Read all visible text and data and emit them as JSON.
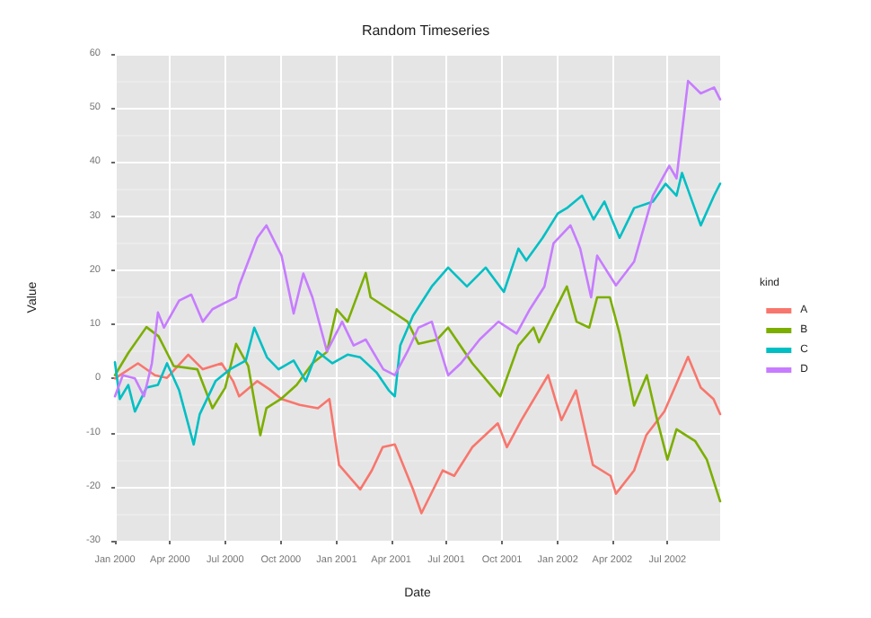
{
  "chart_data": {
    "type": "line",
    "title": "Random Timeseries",
    "xlabel": "Date",
    "ylabel": "Value",
    "legend_title": "kind",
    "legend": "right",
    "grid": true,
    "xlim": [
      "2000-01-01",
      "2002-09-26"
    ],
    "xticks": [
      {
        "value": "2000-01-01",
        "label": "Jan 2000"
      },
      {
        "value": "2000-04-01",
        "label": "Apr 2000"
      },
      {
        "value": "2000-07-01",
        "label": "Jul 2000"
      },
      {
        "value": "2000-10-01",
        "label": "Oct 2000"
      },
      {
        "value": "2001-01-01",
        "label": "Jan 2001"
      },
      {
        "value": "2001-04-01",
        "label": "Apr 2001"
      },
      {
        "value": "2001-07-01",
        "label": "Jul 2001"
      },
      {
        "value": "2001-10-01",
        "label": "Oct 2001"
      },
      {
        "value": "2002-01-01",
        "label": "Jan 2002"
      },
      {
        "value": "2002-04-01",
        "label": "Apr 2002"
      },
      {
        "value": "2002-07-01",
        "label": "Jul 2002"
      }
    ],
    "ylim": [
      -30,
      60
    ],
    "yticks": [
      -30,
      -20,
      -10,
      0,
      10,
      20,
      30,
      40,
      50,
      60
    ],
    "series": [
      {
        "name": "A",
        "color": "#f8766d",
        "x": [
          "2000-01-01",
          "2000-02-08",
          "2000-03-07",
          "2000-03-27",
          "2000-05-01",
          "2000-05-25",
          "2000-06-25",
          "2000-07-14",
          "2000-07-24",
          "2000-08-23",
          "2000-09-12",
          "2000-10-02",
          "2000-11-01",
          "2000-12-01",
          "2000-12-20",
          "2001-01-05",
          "2001-02-09",
          "2001-02-28",
          "2001-03-18",
          "2001-04-07",
          "2001-05-07",
          "2001-05-21",
          "2001-06-25",
          "2001-07-14",
          "2001-08-13",
          "2001-09-24",
          "2001-10-09",
          "2001-11-02",
          "2001-12-16",
          "2002-01-07",
          "2002-01-31",
          "2002-02-28",
          "2002-03-29",
          "2002-04-07",
          "2002-05-07",
          "2002-05-27",
          "2002-06-26",
          "2002-08-04",
          "2002-08-25",
          "2002-09-15",
          "2002-09-26"
        ],
        "values": [
          0,
          2.8,
          0.6,
          0.1,
          4.4,
          1.7,
          2.8,
          -0.5,
          -3.3,
          -0.5,
          -2,
          -3.8,
          -4.9,
          -5.5,
          -3.8,
          -16,
          -20.5,
          -17,
          -12.7,
          -12.2,
          -20.5,
          -24.9,
          -17,
          -18,
          -12.7,
          -8.3,
          -12.7,
          -7.7,
          0.6,
          -7.7,
          -2.2,
          -16,
          -18,
          -21.3,
          -17,
          -10.5,
          -6.1,
          4,
          -1.7,
          -3.8,
          -6.6
        ]
      },
      {
        "name": "B",
        "color": "#7cae00",
        "x": [
          "2000-01-01",
          "2000-01-23",
          "2000-02-22",
          "2000-03-13",
          "2000-04-07",
          "2000-05-16",
          "2000-06-10",
          "2000-07-01",
          "2000-07-19",
          "2000-08-08",
          "2000-08-28",
          "2000-09-07",
          "2000-10-01",
          "2000-10-27",
          "2000-11-22",
          "2000-12-16",
          "2001-01-01",
          "2001-01-19",
          "2001-02-18",
          "2001-02-26",
          "2001-03-28",
          "2001-04-28",
          "2001-05-16",
          "2001-06-16",
          "2001-07-04",
          "2001-08-13",
          "2001-09-28",
          "2001-10-28",
          "2001-11-22",
          "2001-12-01",
          "2002-01-16",
          "2002-02-01",
          "2002-02-22",
          "2002-03-07",
          "2002-03-28",
          "2002-04-13",
          "2002-05-07",
          "2002-05-28",
          "2002-06-13",
          "2002-07-01",
          "2002-07-16",
          "2002-08-16",
          "2002-09-04",
          "2002-09-26"
        ],
        "values": [
          0.6,
          4.7,
          9.5,
          7.8,
          2.3,
          1.7,
          -5.5,
          -1.7,
          6.4,
          2.3,
          -10.5,
          -5.5,
          -3.8,
          -1.2,
          2.8,
          4.9,
          12.8,
          10.5,
          19.5,
          15,
          12.8,
          10.5,
          6.4,
          7.2,
          9.4,
          2.8,
          -3.3,
          6.1,
          9.4,
          6.7,
          17,
          10.5,
          9.4,
          15,
          15,
          8.3,
          -5,
          0.6,
          -7.2,
          -15,
          -9.4,
          -11.6,
          -15,
          -22.7
        ]
      },
      {
        "name": "C",
        "color": "#00bfc4",
        "x": [
          "2000-01-01",
          "2000-01-09",
          "2000-01-23",
          "2000-02-03",
          "2000-02-22",
          "2000-03-12",
          "2000-03-27",
          "2000-04-16",
          "2000-05-10",
          "2000-05-20",
          "2000-06-15",
          "2000-07-09",
          "2000-08-04",
          "2000-08-18",
          "2000-09-08",
          "2000-09-27",
          "2000-10-22",
          "2000-11-11",
          "2000-11-30",
          "2000-12-25",
          "2001-01-19",
          "2001-02-09",
          "2001-03-08",
          "2001-03-28",
          "2001-04-07",
          "2001-04-16",
          "2001-05-07",
          "2001-06-07",
          "2001-07-04",
          "2001-08-04",
          "2001-09-04",
          "2001-10-04",
          "2001-10-28",
          "2001-11-10",
          "2001-12-07",
          "2002-01-01",
          "2002-01-16",
          "2002-02-10",
          "2002-03-01",
          "2002-03-19",
          "2002-04-13",
          "2002-05-07",
          "2002-06-07",
          "2002-06-28",
          "2002-07-16",
          "2002-07-25",
          "2002-08-25",
          "2002-09-16",
          "2002-09-26"
        ],
        "values": [
          3,
          -3.8,
          -1.2,
          -6.1,
          -1.7,
          -1.2,
          2.8,
          -2.2,
          -12.2,
          -6.6,
          -0.5,
          1.7,
          3.3,
          9.4,
          3.9,
          1.7,
          3.3,
          -0.5,
          5,
          2.8,
          4.4,
          3.9,
          1.1,
          -2.2,
          -3.3,
          6.1,
          11.6,
          17,
          20.5,
          17,
          20.5,
          16,
          24,
          21.8,
          26,
          30.5,
          31.5,
          33.8,
          29.4,
          32.7,
          26,
          31.5,
          32.7,
          36,
          33.8,
          38,
          28.3,
          33.8,
          36
        ]
      },
      {
        "name": "D",
        "color": "#c77cff",
        "x": [
          "2000-01-01",
          "2000-01-14",
          "2000-02-03",
          "2000-02-18",
          "2000-03-02",
          "2000-03-12",
          "2000-03-22",
          "2000-04-16",
          "2000-05-06",
          "2000-05-25",
          "2000-06-10",
          "2000-06-29",
          "2000-07-19",
          "2000-07-24",
          "2000-08-23",
          "2000-09-07",
          "2000-10-02",
          "2000-10-22",
          "2000-11-07",
          "2000-11-22",
          "2000-12-16",
          "2001-01-10",
          "2001-01-29",
          "2001-02-18",
          "2001-03-19",
          "2001-04-07",
          "2001-04-28",
          "2001-05-16",
          "2001-06-07",
          "2001-07-04",
          "2001-07-25",
          "2001-08-25",
          "2001-09-25",
          "2001-10-25",
          "2001-11-16",
          "2001-12-10",
          "2001-12-25",
          "2002-01-22",
          "2002-02-07",
          "2002-02-25",
          "2002-03-07",
          "2002-04-07",
          "2002-05-07",
          "2002-06-07",
          "2002-07-04",
          "2002-07-16",
          "2002-08-04",
          "2002-08-25",
          "2002-09-16",
          "2002-09-26"
        ],
        "values": [
          -3.3,
          0.6,
          0,
          -3.3,
          2.8,
          12.2,
          9.4,
          14.4,
          15.5,
          10.5,
          12.8,
          13.9,
          15,
          17.2,
          26,
          28.3,
          22.7,
          12,
          19.4,
          15,
          5,
          10.5,
          6.1,
          7.2,
          1.7,
          0.6,
          5,
          9.4,
          10.5,
          0.6,
          2.8,
          7.2,
          10.5,
          8.3,
          12.8,
          17,
          25,
          28.3,
          24,
          15,
          22.7,
          17.2,
          21.6,
          33.8,
          39.3,
          37,
          55,
          52.7,
          53.8,
          51.6
        ]
      }
    ]
  }
}
